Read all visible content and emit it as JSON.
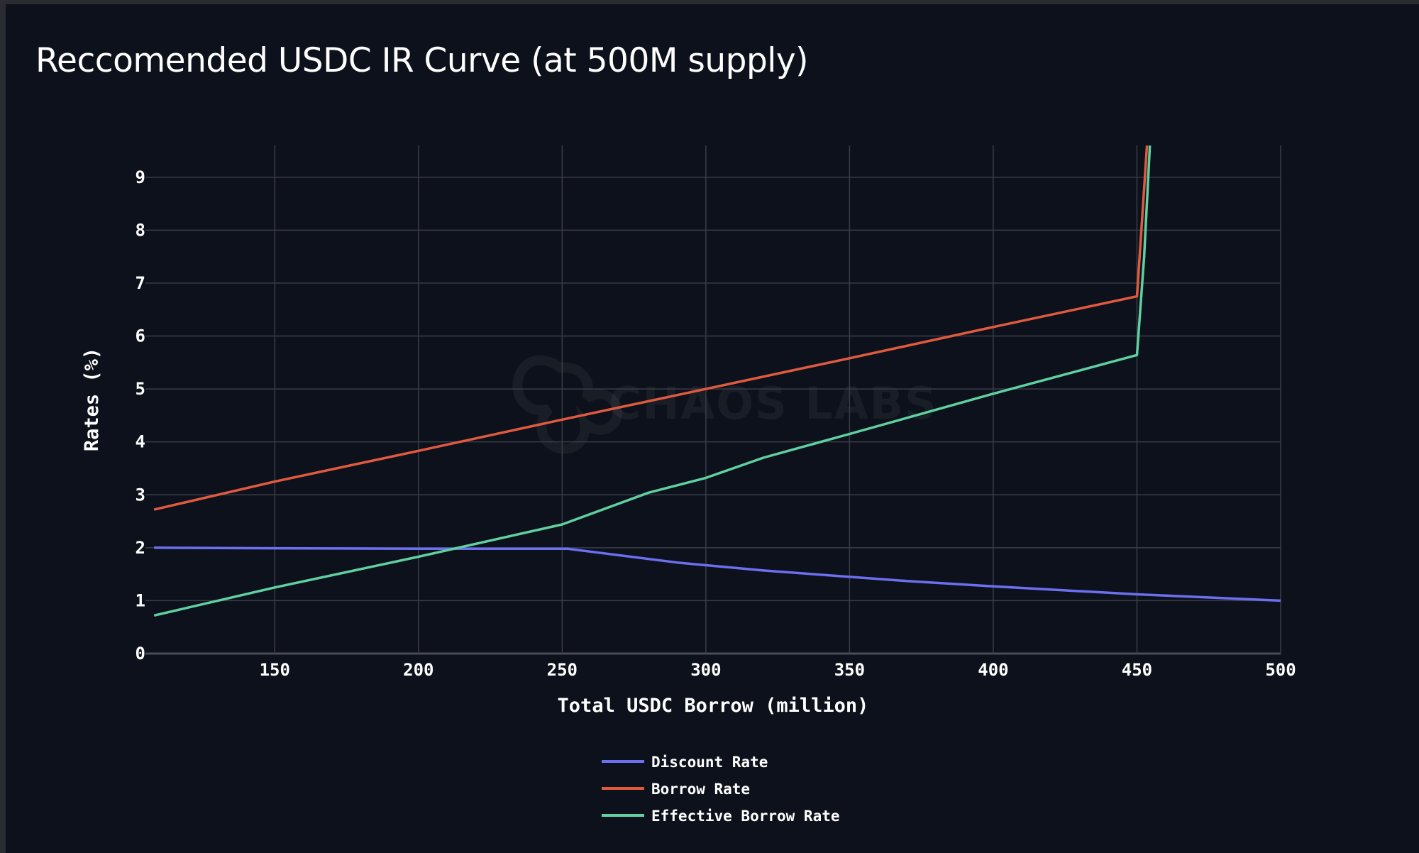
{
  "title": "Reccomended USDC IR Curve (at 500M supply)",
  "watermark": "CHAOS LABS",
  "chart_data": {
    "type": "line",
    "title": "Reccomended USDC IR Curve (at 500M supply)",
    "xlabel": "Total USDC Borrow (million)",
    "ylabel": "Rates (%)",
    "xlim": [
      105,
      500
    ],
    "ylim": [
      0,
      9.6
    ],
    "x_ticks": [
      150,
      200,
      250,
      300,
      350,
      400,
      450,
      500
    ],
    "y_ticks": [
      0,
      1,
      2,
      3,
      4,
      5,
      6,
      7,
      8,
      9
    ],
    "grid": true,
    "legend_position": "bottom-center",
    "series": [
      {
        "name": "Discount Rate",
        "color": "#6b6ff0",
        "x": [
          108,
          150,
          200,
          252,
          290,
          320,
          370,
          400,
          450,
          500
        ],
        "y": [
          2.0,
          1.99,
          1.98,
          1.98,
          1.72,
          1.57,
          1.37,
          1.27,
          1.12,
          1.0
        ]
      },
      {
        "name": "Borrow Rate",
        "color": "#e05a3f",
        "x": [
          108,
          150,
          200,
          250,
          300,
          350,
          400,
          450,
          453.5
        ],
        "y": [
          2.72,
          3.25,
          3.83,
          4.42,
          5.0,
          5.58,
          6.17,
          6.75,
          9.6
        ]
      },
      {
        "name": "Effective Borrow Rate",
        "color": "#5fd0a0",
        "x": [
          108,
          150,
          200,
          250,
          280,
          300,
          320,
          350,
          400,
          450,
          452.5,
          454.5
        ],
        "y": [
          0.72,
          1.25,
          1.83,
          2.44,
          3.04,
          3.32,
          3.7,
          4.15,
          4.91,
          5.64,
          7.5,
          9.6
        ]
      }
    ]
  }
}
